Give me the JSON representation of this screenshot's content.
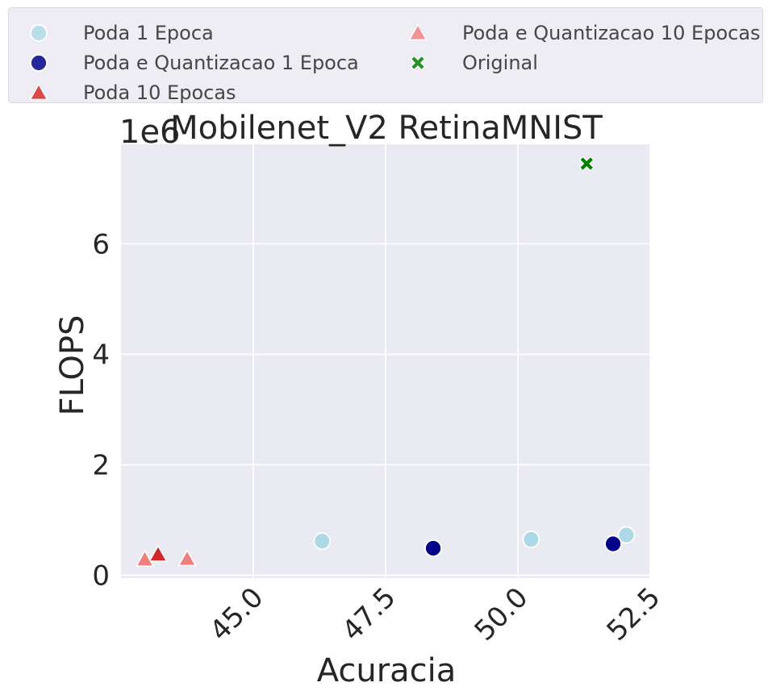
{
  "chart_data": {
    "type": "scatter",
    "title": "Mobilenet_V2 RetinaMNIST",
    "xlabel": "Acuracia",
    "ylabel": "FLOPS",
    "offset_text": "1e6",
    "xlim": [
      42.5,
      52.5
    ],
    "ylim": [
      -0.05,
      7.8
    ],
    "x_ticks": [
      45.0,
      47.5,
      50.0,
      52.5
    ],
    "x_tick_labels": [
      "45.0",
      "47.5",
      "50.0",
      "52.5"
    ],
    "y_ticks": [
      0,
      2,
      4,
      6
    ],
    "y_tick_labels": [
      "0",
      "2",
      "4",
      "6"
    ],
    "grid": true,
    "legend_position": "top",
    "series": [
      {
        "name": "Poda 1 Epoca",
        "marker": "circle",
        "color": "#add8e6",
        "points": [
          {
            "x": 46.3,
            "y": 0.62
          },
          {
            "x": 50.25,
            "y": 0.65
          },
          {
            "x": 52.05,
            "y": 0.73
          }
        ]
      },
      {
        "name": "Poda e Quantizacao 1 Epoca",
        "marker": "circle",
        "color": "#00008b",
        "points": [
          {
            "x": 48.4,
            "y": 0.49
          },
          {
            "x": 51.8,
            "y": 0.57
          }
        ]
      },
      {
        "name": "Poda 10 Epocas",
        "marker": "triangle",
        "color": "#d62728",
        "points": [
          {
            "x": 43.2,
            "y": 0.38
          }
        ]
      },
      {
        "name": "Poda e Quantizacao 10 Epocas",
        "marker": "triangle",
        "color": "#f08080",
        "points": [
          {
            "x": 42.95,
            "y": 0.29
          },
          {
            "x": 43.75,
            "y": 0.3
          }
        ]
      },
      {
        "name": "Original",
        "marker": "x",
        "color": "#008000",
        "points": [
          {
            "x": 51.3,
            "y": 7.45
          }
        ]
      }
    ]
  }
}
